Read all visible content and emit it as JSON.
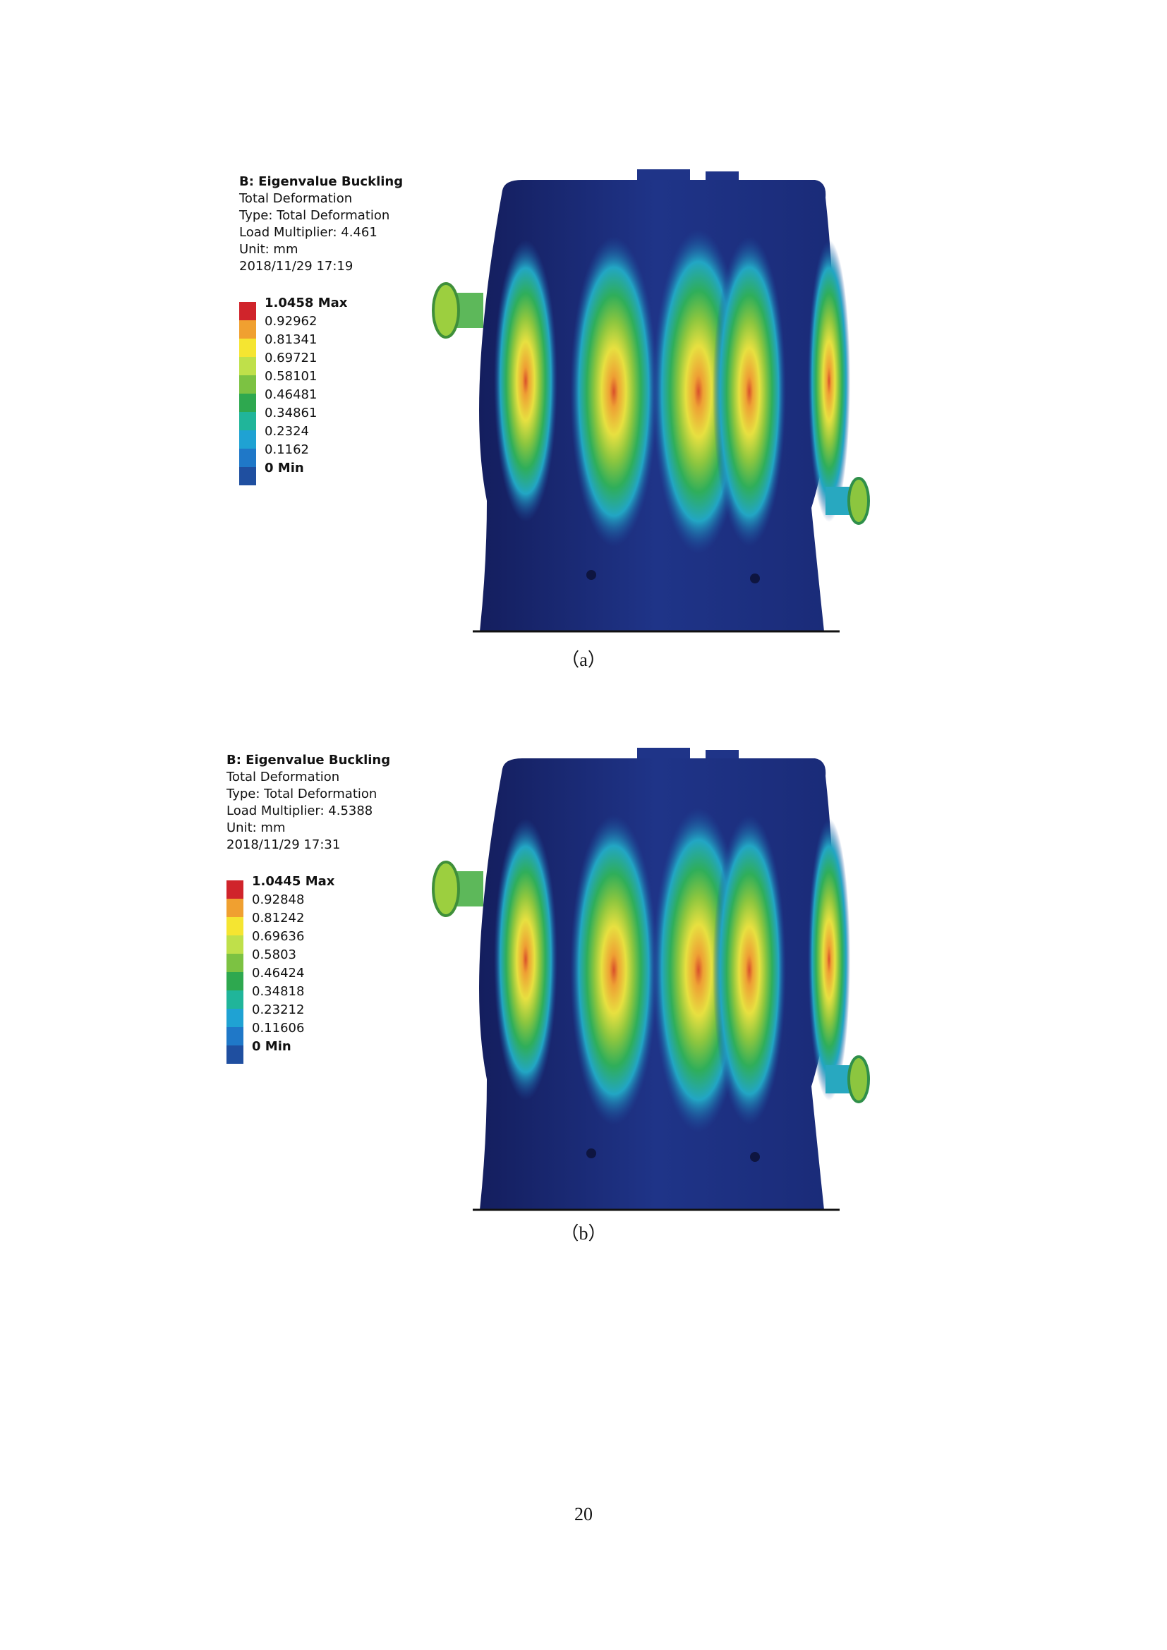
{
  "figures": [
    {
      "header": [
        "B: Eigenvalue Buckling",
        "Total Deformation",
        "Type: Total Deformation",
        "Load Multiplier: 4.461",
        "Unit: mm",
        "2018/11/29 17:19"
      ],
      "legend": [
        "1.0458 Max",
        "0.92962",
        "0.81341",
        "0.69721",
        "0.58101",
        "0.46481",
        "0.34861",
        "0.2324",
        "0.1162",
        "0 Min"
      ],
      "caption": "（a）"
    },
    {
      "header": [
        "B: Eigenvalue Buckling",
        "Total Deformation",
        "Type: Total Deformation",
        "Load Multiplier: 4.5388",
        "Unit: mm",
        "2018/11/29 17:31"
      ],
      "legend": [
        "1.0445 Max",
        "0.92848",
        "0.81242",
        "0.69636",
        "0.5803",
        "0.46424",
        "0.34818",
        "0.23212",
        "0.11606",
        "0 Min"
      ],
      "caption": "（b）"
    }
  ],
  "page_number": "20"
}
